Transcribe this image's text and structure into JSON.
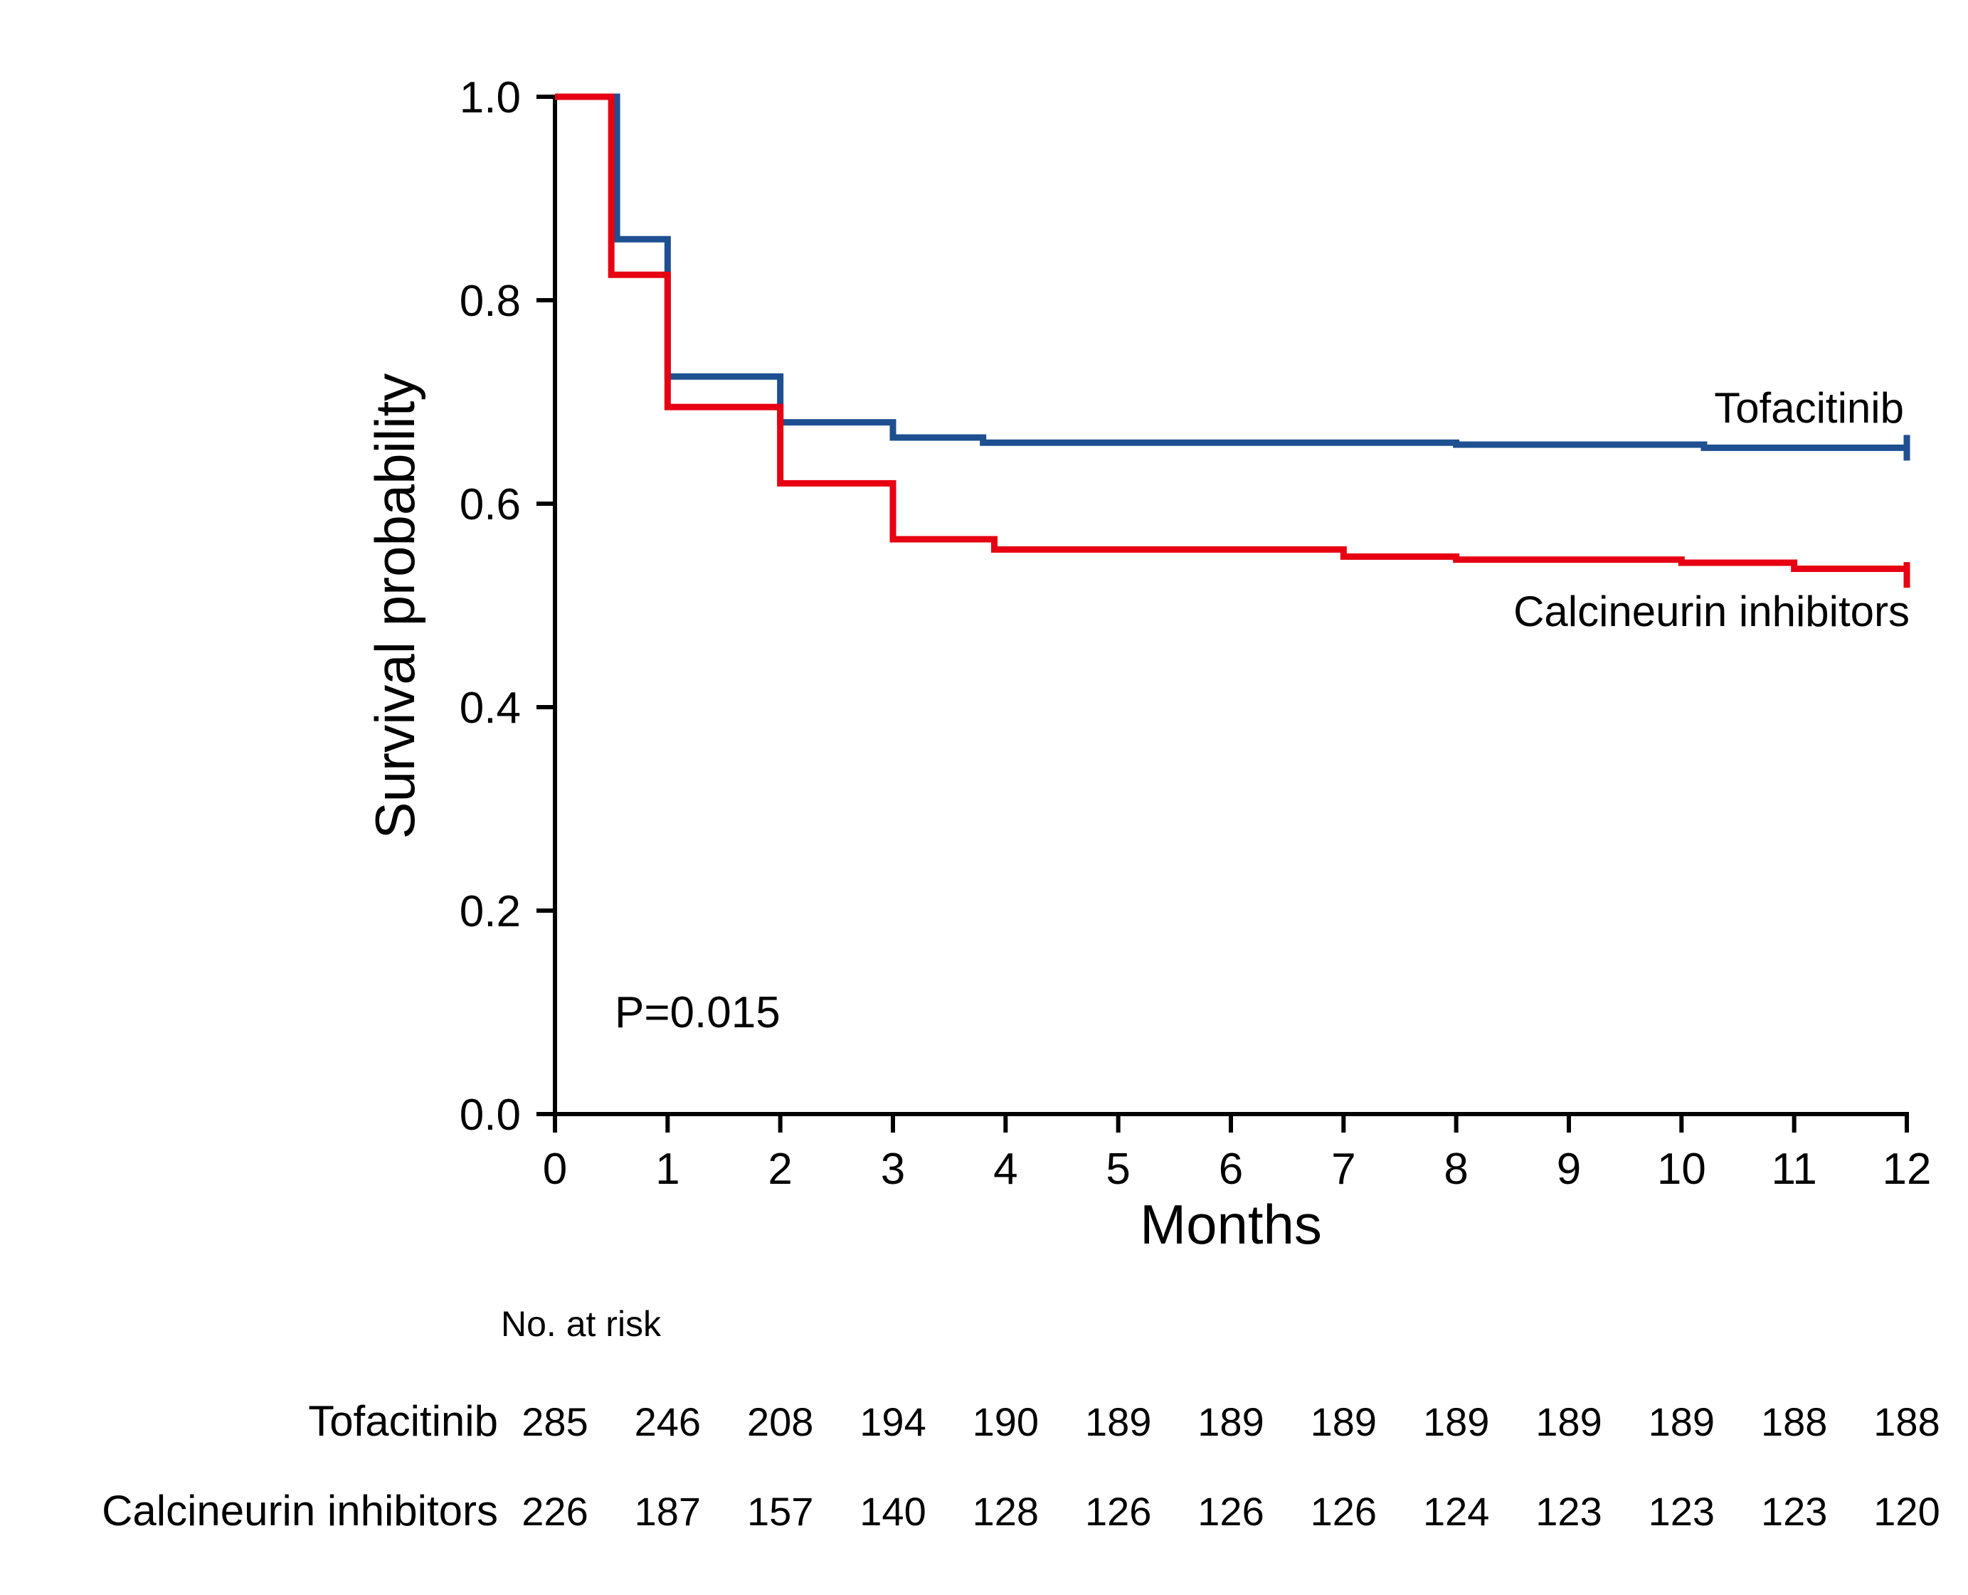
{
  "chart_data": {
    "type": "line",
    "chart_style": "kaplan-meier-step",
    "title": "",
    "xlabel": "Months",
    "ylabel": "Survival probability",
    "xlim": [
      0,
      12
    ],
    "ylim": [
      0,
      1
    ],
    "xticks": [
      0,
      1,
      2,
      3,
      4,
      5,
      6,
      7,
      8,
      9,
      10,
      11,
      12
    ],
    "xtick_labels": [
      "0",
      "1",
      "2",
      "3",
      "4",
      "5",
      "6",
      "7",
      "8",
      "9",
      "10",
      "11",
      "12"
    ],
    "yticks": [
      0,
      0.2,
      0.4,
      0.6,
      0.8,
      1.0
    ],
    "ytick_labels": [
      "0.0",
      "0.2",
      "0.4",
      "0.6",
      "0.8",
      "1.0"
    ],
    "grid": false,
    "legend_position": "curve-end-labels",
    "annotation": {
      "text": "P=0.015",
      "x": 0.55,
      "y": 0.1
    },
    "series": [
      {
        "name": "Tofacitinib",
        "color": "#1d4f91",
        "steps": [
          [
            0,
            1.0
          ],
          [
            0.55,
            0.86
          ],
          [
            1,
            0.725
          ],
          [
            2,
            0.68
          ],
          [
            3,
            0.665
          ],
          [
            3.8,
            0.66
          ],
          [
            8,
            0.658
          ],
          [
            10.2,
            0.655
          ],
          [
            12,
            0.655
          ]
        ]
      },
      {
        "name": "Calcineurin inhibitors",
        "color": "#e60012",
        "steps": [
          [
            0,
            1.0
          ],
          [
            0.5,
            0.825
          ],
          [
            1,
            0.695
          ],
          [
            2,
            0.62
          ],
          [
            3,
            0.565
          ],
          [
            3.9,
            0.555
          ],
          [
            7,
            0.548
          ],
          [
            8,
            0.545
          ],
          [
            10,
            0.542
          ],
          [
            11,
            0.536
          ],
          [
            12,
            0.53
          ]
        ]
      }
    ],
    "risk_table": {
      "title": "No. at risk",
      "times": [
        0,
        1,
        2,
        3,
        4,
        5,
        6,
        7,
        8,
        9,
        10,
        11,
        12
      ],
      "rows": [
        {
          "name": "Tofacitinib",
          "color": "#1d4f91",
          "counts": [
            285,
            246,
            208,
            194,
            190,
            189,
            189,
            189,
            189,
            189,
            189,
            188,
            188
          ]
        },
        {
          "name": "Calcineurin inhibitors",
          "color": "#e60012",
          "counts": [
            226,
            187,
            157,
            140,
            128,
            126,
            126,
            126,
            124,
            123,
            123,
            123,
            120
          ]
        }
      ]
    }
  }
}
